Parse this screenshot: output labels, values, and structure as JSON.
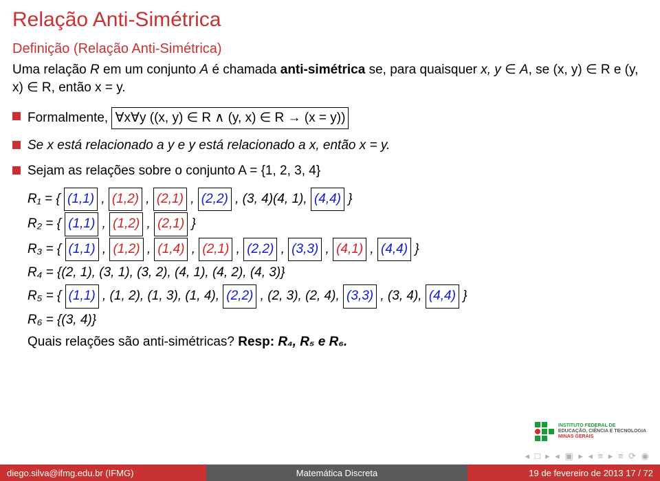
{
  "title": "Relação Anti-Simétrica",
  "definition_heading": "Definição (Relação Anti-Simétrica)",
  "definition_body_pre": "Uma relação ",
  "definition_body_mid": " em um conjunto ",
  "definition_body_after": " é chamada ",
  "definition_body_bold": "anti-simétrica",
  "definition_body_tail": " se, para quaisquer ",
  "definition_body_cond": ", se (x, y) ∈ R e (y, x) ∈ R, então x = y.",
  "bullet1_pre": "Formalmente, ",
  "bullet1_box": "∀x∀y ((x, y) ∈ R ∧ (y, x) ∈ R → (x = y))",
  "bullet2": "Se x está relacionado a y e y está relacionado a x, então x = y.",
  "bullet3": "Sejam as relações sobre o conjunto A = {1, 2, 3, 4}",
  "R1_label": "R₁ = {",
  "R1_p1": "(1,1)",
  "R1_p2": "(1,2)",
  "R1_p3": "(2,1)",
  "R1_p4": "(2,2)",
  "R1_mid": ", (3, 4)(4, 1),",
  "R1_p5": "(4,4)",
  "R2_label": "R₂ = {",
  "R2_p1": "(1,1)",
  "R2_p2": "(1,2)",
  "R2_p3": "(2,1)",
  "R3_label": "R₃ = {",
  "R3_p1": "(1,1)",
  "R3_p2": "(1,2)",
  "R3_p3": "(1,4)",
  "R3_p4": "(2,1)",
  "R3_p5": "(2,2)",
  "R3_p6": "(3,3)",
  "R3_p7": "(4,1)",
  "R3_p8": "(4,4)",
  "R4": "R₄ = {(2, 1), (3, 1), (3, 2), (4, 1), (4, 2), (4, 3)}",
  "R5_label": "R₅ = {",
  "R5_p1": "(1,1)",
  "R5_mid1": ", (1, 2), (1, 3), (1, 4),",
  "R5_p2": "(2,2)",
  "R5_mid2": ", (2, 3), (2, 4),",
  "R5_p3": "(3,3)",
  "R5_mid3": ", (3, 4),",
  "R5_p4": "(4,4)",
  "R6": "R₆ = {(3, 4)}",
  "question": "Quais relações são anti-simétricas? ",
  "answer_label": "Resp: ",
  "answer": "R₄, R₅ e R₆.",
  "footer_left": "diego.silva@ifmg.edu.br (IFMG)",
  "footer_mid": "Matemática Discreta",
  "footer_right": "19 de fevereiro de 2013    17 / 72",
  "nav": "◂ □ ▸ ◂ ▣ ▸ ◂ ≡ ▸ ≡ ⟳ ◉",
  "logo_line1": "INSTITUTO FEDERAL DE",
  "logo_line2": "EDUCAÇÃO, CIÊNCIA E TECNOLOGIA",
  "logo_line3": "MINAS GERAIS"
}
